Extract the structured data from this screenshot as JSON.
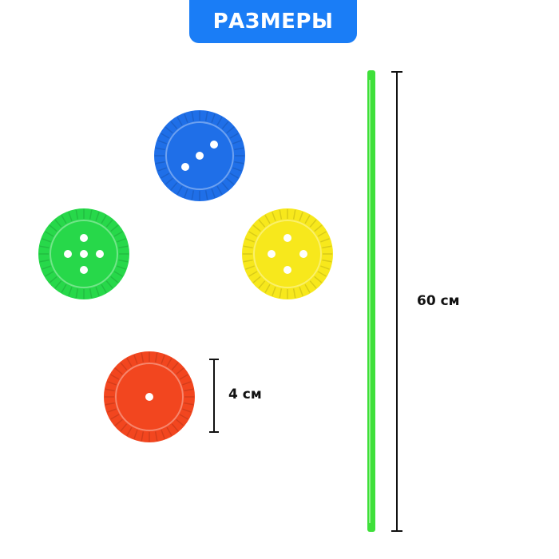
{
  "title": "РАЗМЕРЫ",
  "dimensions": {
    "stick_length": "60 см",
    "disc_diameter": "4 см"
  },
  "colors": {
    "badge": "#1a7df6",
    "blue_disc": "#1f6fe8",
    "green_disc": "#27d84a",
    "yellow_disc": "#f7e81c",
    "red_disc": "#f2461f",
    "stick": "#3fe03a"
  },
  "discs": [
    {
      "color": "blue",
      "holes": 3
    },
    {
      "color": "green",
      "holes": 5
    },
    {
      "color": "yellow",
      "holes": 4
    },
    {
      "color": "red",
      "holes": 1
    }
  ]
}
